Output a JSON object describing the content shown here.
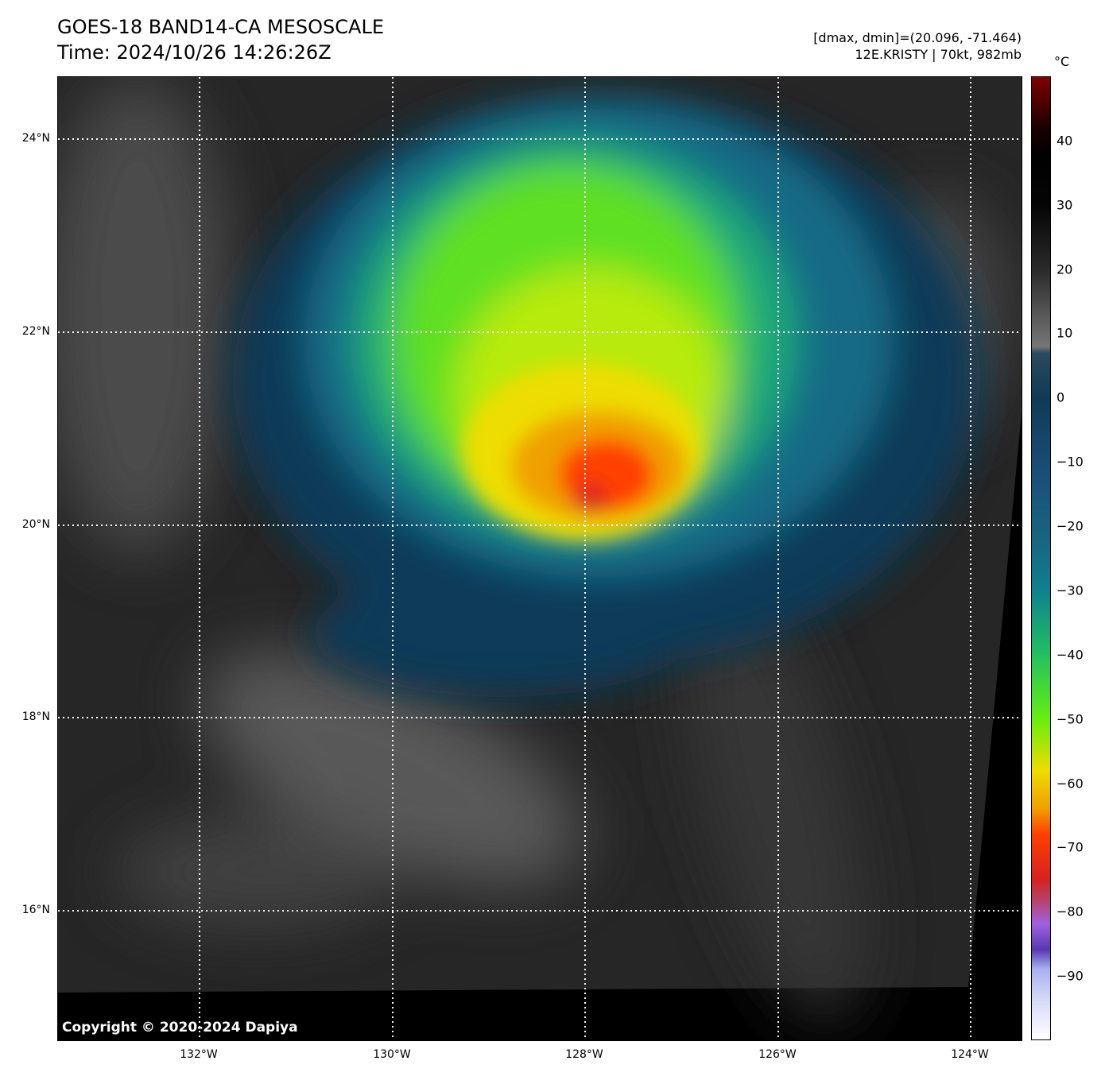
{
  "header": {
    "title": "GOES-18 BAND14-CA MESOSCALE",
    "time": "Time: 2024/10/26 14:26:26Z",
    "range": "[dmax, dmin]=(20.096, -71.464)",
    "storm": "12E.KRISTY | 70kt, 982mb"
  },
  "map": {
    "copyright": "Copyright © 2020-2024 Dapiya",
    "lat_labels": [
      "24°N",
      "22°N",
      "20°N",
      "18°N",
      "16°N"
    ],
    "lon_labels": [
      "132°W",
      "130°W",
      "128°W",
      "126°W",
      "124°W"
    ]
  },
  "colorbar": {
    "unit": "°C",
    "range": [
      -100,
      50
    ],
    "ticks": [
      "40",
      "30",
      "20",
      "10",
      "0",
      "−10",
      "−20",
      "−30",
      "−40",
      "−50",
      "−60",
      "−70",
      "−80",
      "−90"
    ],
    "tick_values": [
      40,
      30,
      20,
      10,
      0,
      -10,
      -20,
      -30,
      -40,
      -50,
      -60,
      -70,
      -80,
      -90
    ],
    "stops": [
      {
        "v": 50,
        "c": "#800000"
      },
      {
        "v": 42,
        "c": "#1a0000"
      },
      {
        "v": 38,
        "c": "#000000"
      },
      {
        "v": 30,
        "c": "#050505"
      },
      {
        "v": 20,
        "c": "#2a2a2a"
      },
      {
        "v": 8,
        "c": "#777777"
      },
      {
        "v": 7,
        "c": "#2c4a5e"
      },
      {
        "v": 0,
        "c": "#0f3a56"
      },
      {
        "v": -12,
        "c": "#1a4f78"
      },
      {
        "v": -22,
        "c": "#186580"
      },
      {
        "v": -30,
        "c": "#0f8090"
      },
      {
        "v": -40,
        "c": "#22c060"
      },
      {
        "v": -50,
        "c": "#66ee10"
      },
      {
        "v": -58,
        "c": "#eedd00"
      },
      {
        "v": -64,
        "c": "#f0a000"
      },
      {
        "v": -68,
        "c": "#ff4000"
      },
      {
        "v": -75,
        "c": "#d82020"
      },
      {
        "v": -78,
        "c": "#b84060"
      },
      {
        "v": -82,
        "c": "#a060e0"
      },
      {
        "v": -86,
        "c": "#5838b0"
      },
      {
        "v": -89,
        "c": "#a8b0f0"
      },
      {
        "v": -94,
        "c": "#d8daf8"
      },
      {
        "v": -100,
        "c": "#ffffff"
      }
    ]
  }
}
